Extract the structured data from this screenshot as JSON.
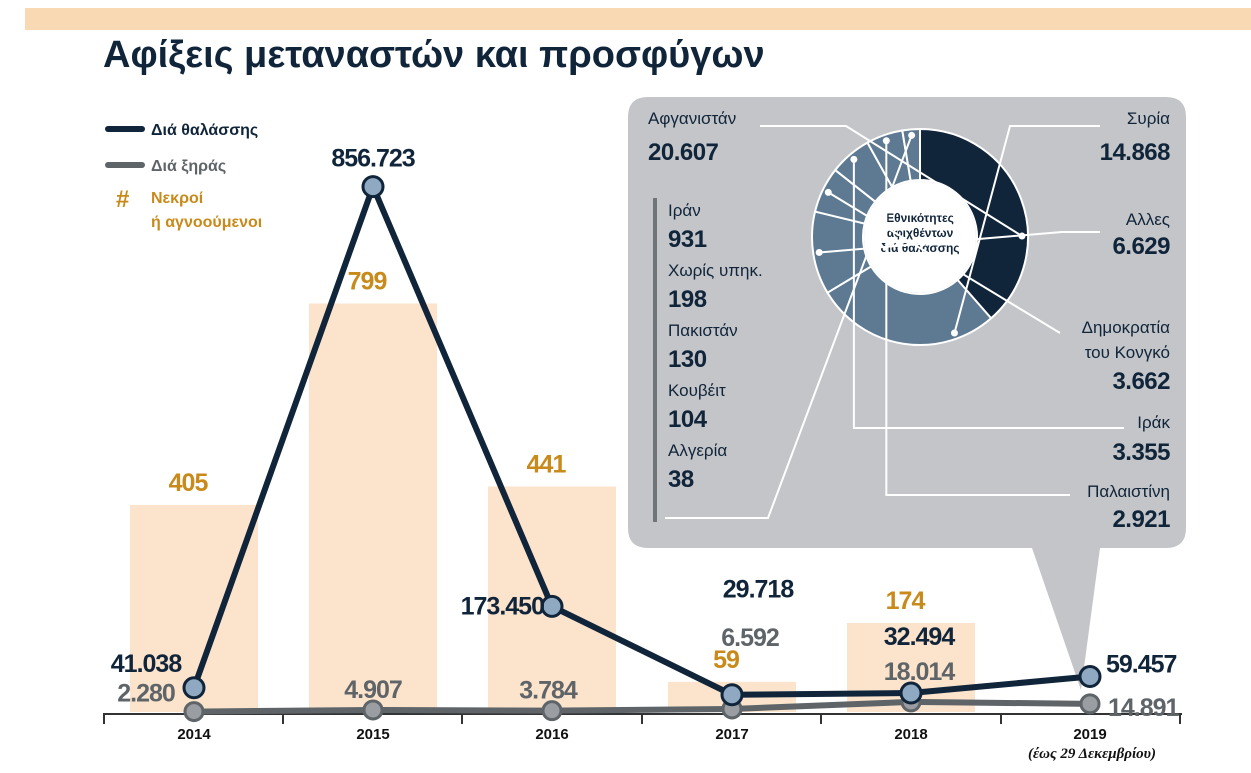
{
  "title": "Αφίξεις μεταναστών και προσφύγων",
  "legend": {
    "sea": "Διά θαλάσσης",
    "land": "Διά ξηράς",
    "dead_symbol": "#",
    "dead_line1": "Νεκροί",
    "dead_line2": "ή αγνοούμενοι"
  },
  "colors": {
    "sea": "#10243a",
    "land": "#5e6468",
    "dead_bar": "#fbe3cc",
    "dead_text": "#c88a1a",
    "panel": "#c3c5c8",
    "marker_fill": "#8ea9c1"
  },
  "chart_data": {
    "type": "line",
    "categories": [
      "2014",
      "2015",
      "2016",
      "2017",
      "2018",
      "2019"
    ],
    "category_note": "(έως 29 Δεκεμβρίου)",
    "series": [
      {
        "name": "Διά θαλάσσης",
        "values": [
          41038,
          856723,
          173450,
          29718,
          32494,
          59457
        ],
        "labels": [
          "41.038",
          "856.723",
          "173.450",
          "29.718",
          "32.494",
          "59.457"
        ]
      },
      {
        "name": "Διά ξηράς",
        "values": [
          2280,
          4907,
          3784,
          6592,
          18014,
          14891
        ],
        "labels": [
          "2.280",
          "4.907",
          "3.784",
          "6.592",
          "18.014",
          "14.891"
        ]
      }
    ],
    "bars": {
      "name": "Νεκροί ή αγνοούμενοι",
      "values": [
        405,
        799,
        441,
        59,
        174,
        null
      ],
      "labels": [
        "405",
        "799",
        "441",
        "59",
        "174",
        ""
      ]
    },
    "ylim": [
      0,
      900000
    ],
    "bar_ylim": [
      0,
      1150
    ]
  },
  "nationalities": {
    "center_label": [
      "Εθνικότητες",
      "αφιχθέντων",
      "διά θαλάσσης"
    ],
    "slices": [
      {
        "name": "Αφγανιστάν",
        "value": 20607,
        "label": "20.607",
        "color": "#10243a"
      },
      {
        "name": "Συρία",
        "value": 14868,
        "label": "14.868",
        "color": "#5e7a92"
      },
      {
        "name": "Αλλες",
        "value": 6629,
        "label": "6.629",
        "color": "#5e7a92"
      },
      {
        "name": "Δημοκρατία του Κονγκό",
        "value": 3662,
        "label": "3.662",
        "color": "#5e7a92"
      },
      {
        "name": "Ιράκ",
        "value": 3355,
        "label": "3.355",
        "color": "#5e7a92"
      },
      {
        "name": "Παλαιστίνη",
        "value": 2921,
        "label": "2.921",
        "color": "#5e7a92"
      },
      {
        "name": "small_group",
        "value": 1401,
        "label": "",
        "color": "#5e7a92"
      }
    ],
    "small_list": [
      {
        "name": "Ιράν",
        "label": "931"
      },
      {
        "name": "Χωρίς υπηκ.",
        "label": "198"
      },
      {
        "name": "Πακιστάν",
        "label": "130"
      },
      {
        "name": "Κουβέιτ",
        "label": "104"
      },
      {
        "name": "Αλγερία",
        "label": "38"
      }
    ]
  }
}
